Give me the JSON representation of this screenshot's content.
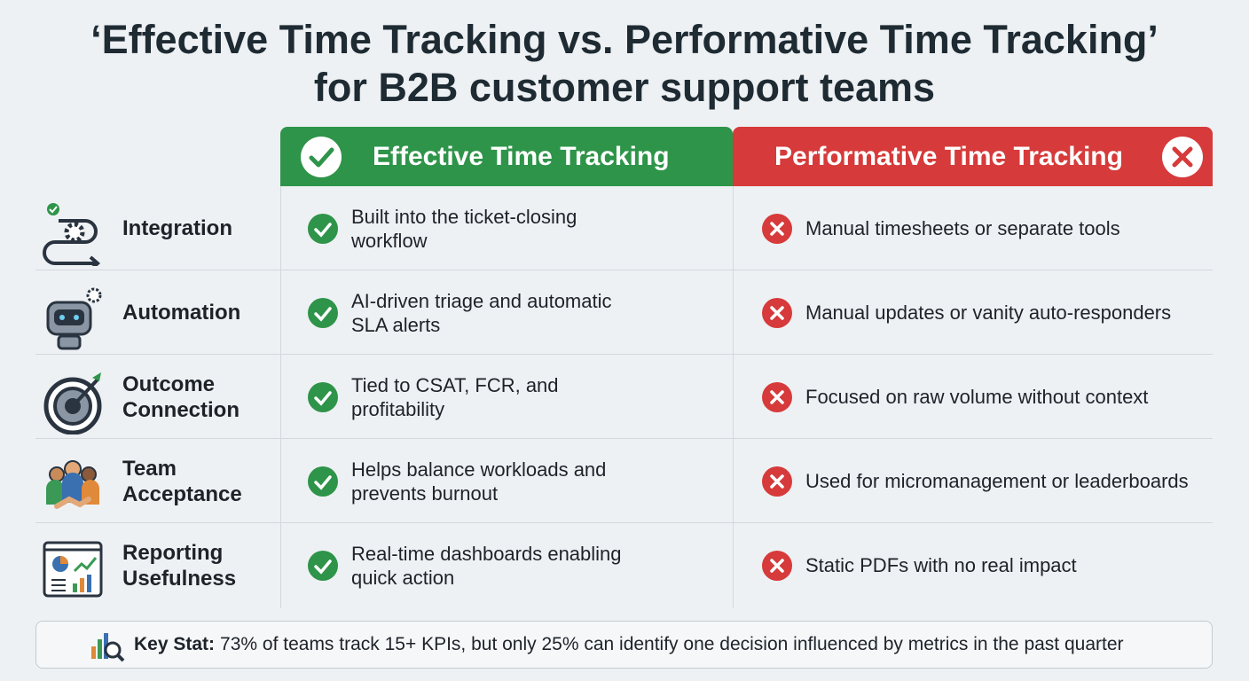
{
  "title": [
    "‘Effective Time Tracking vs. Performative Time Tracking’",
    "for B2B customer support teams"
  ],
  "columns": [
    "Effective Time Tracking",
    "Performative Time Tracking"
  ],
  "rows": [
    {
      "label": "Integration",
      "effective": "Built into the ticket-closing workflow",
      "performative": "Manual timesheets or separate tools"
    },
    {
      "label": "Automation",
      "effective": "AI-driven triage and automatic SLA alerts",
      "performative": "Manual updates or vanity auto-responders"
    },
    {
      "label": "Outcome Connection",
      "effective": "Tied to CSAT, FCR, and profitability",
      "performative": "Focused on raw volume without context"
    },
    {
      "label": "Team Acceptance",
      "effective": "Helps balance workloads and prevents burnout",
      "performative": "Used for micromanagement or leaderboards"
    },
    {
      "label": "Reporting Usefulness",
      "effective": "Real-time dashboards enabling quick action",
      "performative": "Static PDFs with no real impact"
    }
  ],
  "key_stat": {
    "label": "Key Stat:",
    "text": "73% of teams track 15+ KPIs, but only 25% can identify one decision influenced by metrics in the past quarter"
  }
}
